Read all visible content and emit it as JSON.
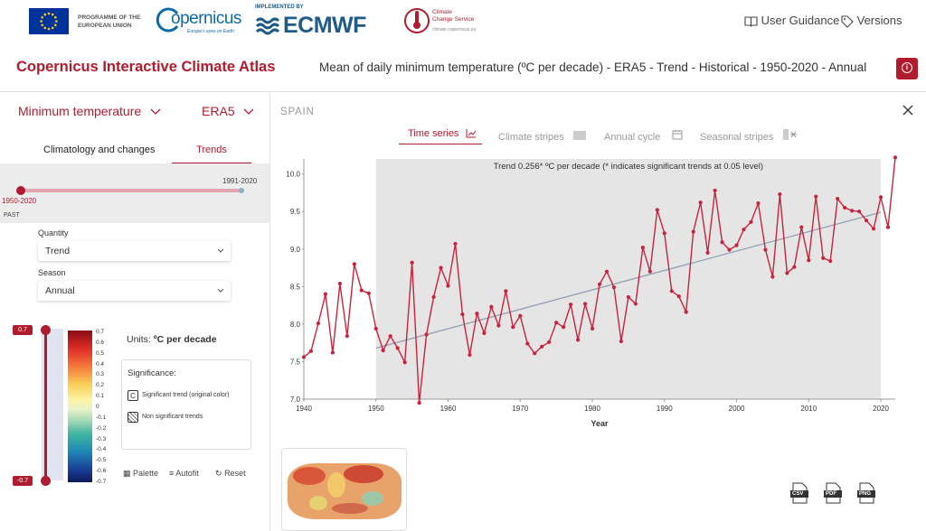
{
  "header": {
    "eu_program": [
      "PROGRAMME OF THE",
      "EUROPEAN UNION"
    ],
    "copernicus_name": "opernicus",
    "copernicus_tagline": "Europe's eyes on Earth",
    "implemented_by": "IMPLEMENTED BY",
    "ecmwf": "ECMWF",
    "c3s_title": [
      "Climate",
      "Change Service"
    ],
    "c3s_url": "climate.copernicus.eu",
    "user_guidance": "User Guidance",
    "versions": "Versions"
  },
  "titlebar": {
    "app_title": "Copernicus Interactive Climate Atlas",
    "page_title": "Mean of daily minimum temperature (ºC per decade) - ERA5 - Trend - Historical - 1950-2020 - Annual",
    "info_icon": "i"
  },
  "sidebar": {
    "variable": "Minimum temperature",
    "dataset": "ERA5",
    "tabs": [
      "Climatology and changes",
      "Trends"
    ],
    "active_tab": 1,
    "period_right": "1991-2020",
    "period_left": "1950-2020",
    "past": "PAST",
    "quantity_label": "Quantity",
    "quantity_value": "Trend",
    "season_label": "Season",
    "season_value": "Annual",
    "scale_top": "0.7",
    "scale_bottom": "-0.7",
    "scale_ticks": [
      "0.7",
      "0.6",
      "0.5",
      "0.4",
      "0.3",
      "0.2",
      "0.1",
      "0",
      "-0.1",
      "-0.2",
      "-0.3",
      "-0.4",
      "-0.5",
      "-0.6",
      "-0.7"
    ],
    "units_prefix": "Units: ",
    "units_value": "ºC per decade",
    "significance_title": "Significance:",
    "sig_trend": "Significant trend (original color)",
    "non_sig": "Non significant trends",
    "sig_icon_letter": "C",
    "palette": "Palette",
    "autofit": "Autofit",
    "reset": "Reset"
  },
  "main": {
    "region": "SPAIN",
    "tabs": [
      "Time series",
      "Climate stripes",
      "Annual cycle",
      "Seasonal stripes"
    ],
    "active_tab": 0,
    "downloads": [
      "CSV",
      "PDF",
      "PNG"
    ]
  },
  "chart_data": {
    "type": "line",
    "annotation": "Trend 0.256* ºC per decade (* indicates significant trends at 0.05 level)",
    "xlabel": "Year",
    "ylabel": "",
    "xlim": [
      1940,
      2022
    ],
    "ylim": [
      7.0,
      10.2
    ],
    "xticks": [
      1940,
      1950,
      1960,
      1970,
      1980,
      1990,
      2000,
      2010,
      2020
    ],
    "yticks": [
      7.0,
      7.5,
      8.0,
      8.5,
      9.0,
      9.5,
      10.0
    ],
    "shaded_period": [
      1950,
      2020
    ],
    "trend_line": {
      "x": [
        1950,
        2020
      ],
      "y": [
        7.68,
        9.49
      ]
    },
    "series": [
      {
        "x": [
          1940,
          1941,
          1942,
          1943,
          1944,
          1945,
          1946,
          1947,
          1948,
          1949,
          1950,
          1951,
          1952,
          1953,
          1954,
          1955,
          1956,
          1957,
          1958,
          1959,
          1960,
          1961,
          1962,
          1963,
          1964,
          1965,
          1966,
          1967,
          1968,
          1969,
          1970,
          1971,
          1972,
          1973,
          1974,
          1975,
          1976,
          1977,
          1978,
          1979,
          1980,
          1981,
          1982,
          1983,
          1984,
          1985,
          1986,
          1987,
          1988,
          1989,
          1990,
          1991,
          1992,
          1993,
          1994,
          1995,
          1996,
          1997,
          1998,
          1999,
          2000,
          2001,
          2002,
          2003,
          2004,
          2005,
          2006,
          2007,
          2008,
          2009,
          2010,
          2011,
          2012,
          2013,
          2014,
          2015,
          2016,
          2017,
          2018,
          2019,
          2020,
          2021,
          2022
        ],
        "values": [
          7.56,
          7.64,
          8.01,
          8.4,
          7.62,
          8.54,
          7.84,
          8.8,
          8.45,
          8.41,
          7.94,
          7.65,
          7.84,
          7.68,
          7.49,
          8.82,
          6.95,
          7.86,
          8.36,
          8.75,
          8.51,
          9.07,
          8.13,
          7.59,
          8.14,
          7.88,
          8.23,
          7.98,
          8.44,
          7.96,
          8.11,
          7.74,
          7.61,
          7.7,
          7.76,
          8.02,
          7.96,
          8.26,
          7.79,
          8.27,
          7.94,
          8.53,
          8.7,
          8.49,
          7.77,
          8.36,
          8.27,
          9.02,
          8.7,
          9.52,
          9.21,
          8.44,
          8.37,
          8.16,
          9.23,
          9.62,
          8.95,
          9.78,
          9.09,
          8.99,
          9.05,
          9.26,
          9.36,
          9.61,
          8.99,
          8.63,
          9.73,
          8.68,
          8.76,
          9.29,
          8.85,
          9.7,
          8.88,
          8.84,
          9.67,
          9.55,
          9.51,
          9.5,
          9.38,
          9.27,
          9.69,
          9.29,
          10.22
        ]
      }
    ]
  },
  "colors": {
    "brand": "#b01c2e",
    "line": "#c7243b",
    "trend": "#9aa4b5",
    "shade": "#e5e5e5"
  }
}
